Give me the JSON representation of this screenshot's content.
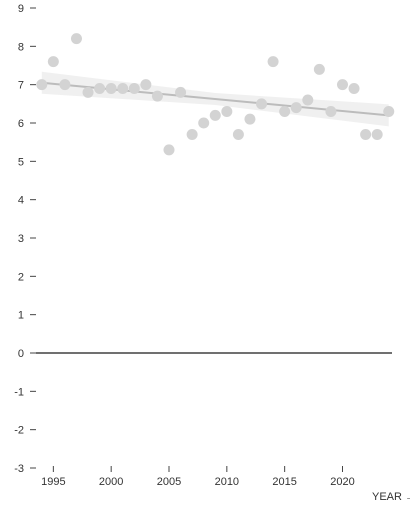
{
  "chart_data": {
    "type": "scatter",
    "xlabel": "YEAR →",
    "ylabel": "",
    "title": "",
    "x_ticks": [
      1995,
      2000,
      2005,
      2010,
      2015,
      2020
    ],
    "y_ticks": [
      9,
      8,
      7,
      6,
      5,
      4,
      3,
      2,
      1,
      0,
      -1,
      -2,
      -3
    ],
    "xlim": [
      1993.5,
      2024.8
    ],
    "ylim": [
      -3,
      9
    ],
    "grid": false,
    "legend": "none",
    "series": [
      {
        "x": [
          1994,
          1995,
          1996,
          1997,
          1998,
          1999,
          2000,
          2001,
          2002,
          2003,
          2004,
          2005,
          2006,
          2007,
          2008,
          2009,
          2010,
          2011,
          2012,
          2013,
          2014,
          2015,
          2016,
          2017,
          2018,
          2019,
          2020,
          2021,
          2022,
          2023,
          2024
        ],
        "y": [
          7.0,
          7.6,
          7.0,
          8.2,
          6.8,
          6.9,
          6.9,
          6.9,
          6.9,
          7.0,
          6.7,
          5.3,
          6.8,
          5.7,
          6.0,
          6.2,
          6.3,
          5.7,
          6.1,
          6.5,
          7.6,
          6.3,
          6.4,
          6.6,
          7.4,
          6.3,
          7.0,
          6.9,
          5.7,
          5.7,
          6.3
        ]
      }
    ],
    "trend_line": {
      "x": [
        1994,
        2024
      ],
      "y": [
        7.05,
        6.2
      ]
    },
    "reference_line": {
      "y": 0
    },
    "colors": {
      "points": "#d3d3d3",
      "trend": "#bcbcbc",
      "band": "#ececec",
      "zero_line": "#404040",
      "axis": "#444444",
      "text": "#333333"
    }
  }
}
